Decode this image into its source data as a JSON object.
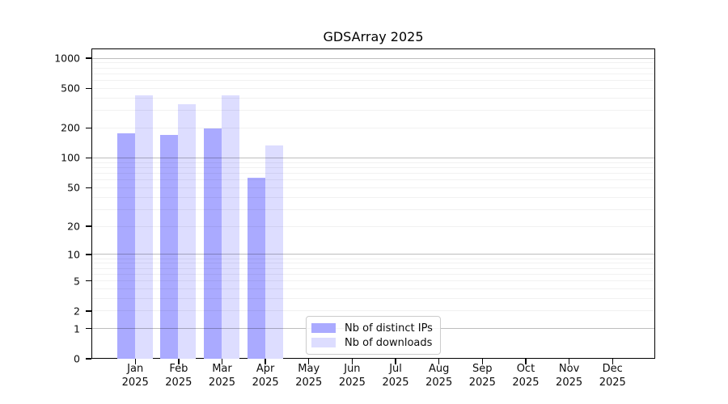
{
  "chart_data": {
    "type": "bar",
    "title": "GDSArray 2025",
    "categories": [
      "Jan",
      "Feb",
      "Mar",
      "Apr",
      "May",
      "Jun",
      "Jul",
      "Aug",
      "Sep",
      "Oct",
      "Nov",
      "Dec"
    ],
    "category_year": "2025",
    "series": [
      {
        "name": "Nb of distinct IPs",
        "color": "#aaaaff",
        "values": [
          180,
          175,
          200,
          64,
          null,
          null,
          null,
          null,
          null,
          null,
          null,
          null
        ]
      },
      {
        "name": "Nb of downloads",
        "color": "#ddddff",
        "values": [
          430,
          350,
          433,
          135,
          null,
          null,
          null,
          null,
          null,
          null,
          null,
          null
        ]
      }
    ],
    "y_ticks": [
      0,
      1,
      2,
      5,
      10,
      20,
      50,
      100,
      200,
      500,
      1000
    ],
    "y_scale": "log10(1+v)",
    "ylim": [
      0,
      1250
    ],
    "xlabel": "",
    "ylabel": "",
    "grid": "horizontal; major lines at 1,10,100,1000; faint minor lines at 2-9 mantissas",
    "legend_position": "inside, lower center"
  }
}
